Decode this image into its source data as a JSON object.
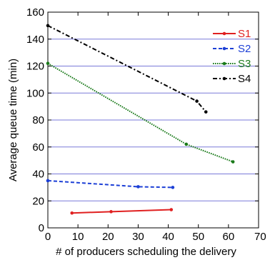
{
  "chart_data": {
    "type": "line",
    "title": "",
    "xlabel": "# of producers scheduling the delivery",
    "ylabel": "Average queue time (min)",
    "xlim": [
      0,
      70
    ],
    "ylim": [
      0,
      160
    ],
    "xticks": [
      0,
      10,
      20,
      30,
      40,
      50,
      60,
      70
    ],
    "yticks": [
      0,
      20,
      40,
      60,
      80,
      100,
      120,
      140,
      160
    ],
    "grid": "horizontal",
    "legend_position": "top-right",
    "series": [
      {
        "name": "S1",
        "color": "#e02020",
        "dash": "solid",
        "x": [
          8,
          21,
          41
        ],
        "y": [
          11,
          12,
          13.5
        ]
      },
      {
        "name": "S2",
        "color": "#1c3fd6",
        "dash": "dashed",
        "x": [
          0,
          30,
          41.5
        ],
        "y": [
          35,
          30.5,
          30
        ]
      },
      {
        "name": "S3",
        "color": "#1a7a1a",
        "dash": "dotted",
        "x": [
          0,
          46,
          61.5
        ],
        "y": [
          122,
          62,
          49
        ]
      },
      {
        "name": "S4",
        "color": "#000000",
        "dash": "dashdot",
        "x": [
          0,
          49.5,
          52.5
        ],
        "y": [
          150,
          94,
          86
        ]
      }
    ]
  }
}
